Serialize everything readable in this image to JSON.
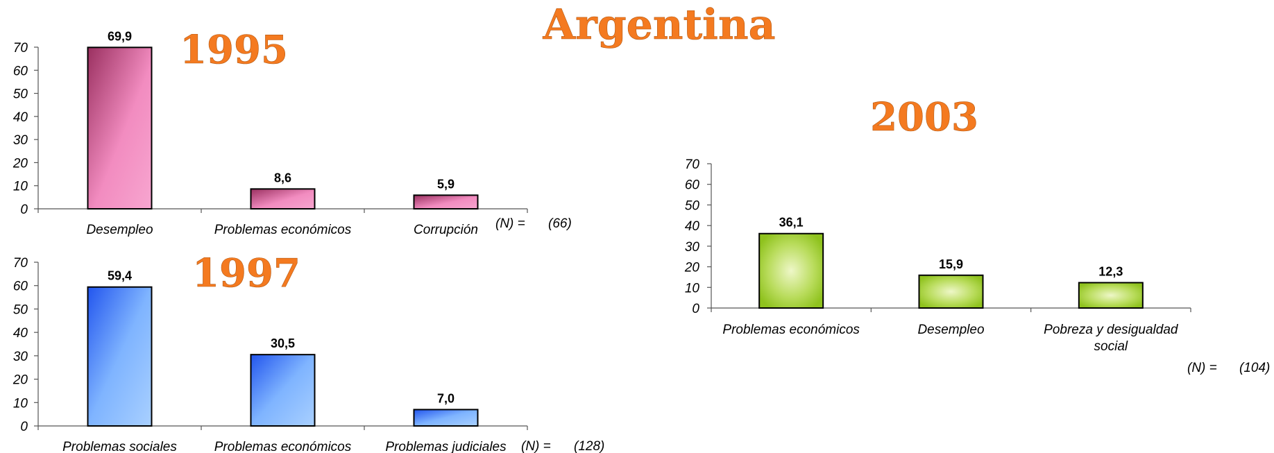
{
  "page_title": "Argentina",
  "chart_data": [
    {
      "type": "bar",
      "title": "1995",
      "categories": [
        "Desempleo",
        "Problemas económicos",
        "Corrupción"
      ],
      "values": [
        69.9,
        8.6,
        5.9
      ],
      "value_labels": [
        "69,9",
        "8,6",
        "5,9"
      ],
      "yticks": [
        "0",
        "10",
        "20",
        "30",
        "40",
        "50",
        "60",
        "70"
      ],
      "ylim": [
        0,
        70
      ],
      "n_label": "(N) =",
      "n_value": "(66)",
      "bar_color": "#f28cc0",
      "bar_color_dark": "#9a3060",
      "grid": false
    },
    {
      "type": "bar",
      "title": "1997",
      "categories": [
        "Problemas sociales",
        "Problemas económicos",
        "Problemas judiciales"
      ],
      "values": [
        59.4,
        30.5,
        7.0
      ],
      "value_labels": [
        "59,4",
        "30,5",
        "7,0"
      ],
      "yticks": [
        "0",
        "10",
        "20",
        "30",
        "40",
        "50",
        "60",
        "70"
      ],
      "ylim": [
        0,
        70
      ],
      "n_label": "(N) =",
      "n_value": "(128)",
      "bar_color": "#9cc8ff",
      "bar_color_dark": "#2255ee",
      "grid": false
    },
    {
      "type": "bar",
      "title": "2003",
      "categories": [
        "Problemas económicos",
        "Desempleo",
        "Pobreza y desigualdad social"
      ],
      "values": [
        36.1,
        15.9,
        12.3
      ],
      "value_labels": [
        "36,1",
        "15,9",
        "12,3"
      ],
      "yticks": [
        "0",
        "10",
        "20",
        "30",
        "40",
        "50",
        "60",
        "70"
      ],
      "ylim": [
        0,
        70
      ],
      "n_label": "(N) =",
      "n_value": "(104)",
      "bar_color": "#9ccc2a",
      "bar_color_light": "#e6f2b8",
      "grid": false
    }
  ]
}
